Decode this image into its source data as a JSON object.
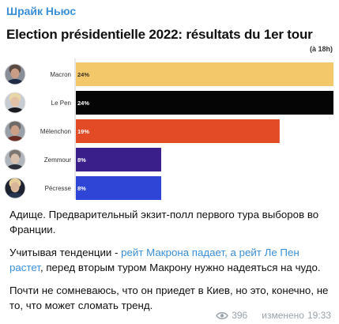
{
  "channel": {
    "name": "Шрайк Ньюс"
  },
  "chart_data": {
    "type": "bar",
    "orientation": "horizontal",
    "title": "Election présidentielle 2022: résultats du 1er tour",
    "subtitle": "(à 18h)",
    "categories": [
      "Macron",
      "Le Pen",
      "Mélenchon",
      "Zemmour",
      "Pécresse"
    ],
    "values": [
      24,
      24,
      19,
      8,
      8
    ],
    "value_labels": [
      "24%",
      "24%",
      "19%",
      "8%",
      "8%"
    ],
    "xlim": [
      0,
      24
    ],
    "colors": [
      "#f2c86a",
      "#050505",
      "#e24b26",
      "#3a1f8a",
      "#2f45d6"
    ],
    "avatar_icons": [
      "macron-portrait-icon",
      "le-pen-portrait-icon",
      "melenchon-portrait-icon",
      "zemmour-portrait-icon",
      "pecresse-portrait-icon"
    ]
  },
  "post": {
    "p1": "Адище. Предварительный экзит-полл первого тура выборов во Франции.",
    "p2_pre": "Учитывая тенденции - ",
    "p2_link": "рейт Макрона падает, а рейт Ле Пен растет",
    "p2_post": ", перед вторым туром Макрону нужно надеяться на чудо.",
    "p3": "Почти не сомневаюсь, что он приедет в Киев, но это, конечно, не то, что может сломать тренд."
  },
  "meta": {
    "views": "396",
    "edited_label": "изменено",
    "time": "19:33"
  }
}
